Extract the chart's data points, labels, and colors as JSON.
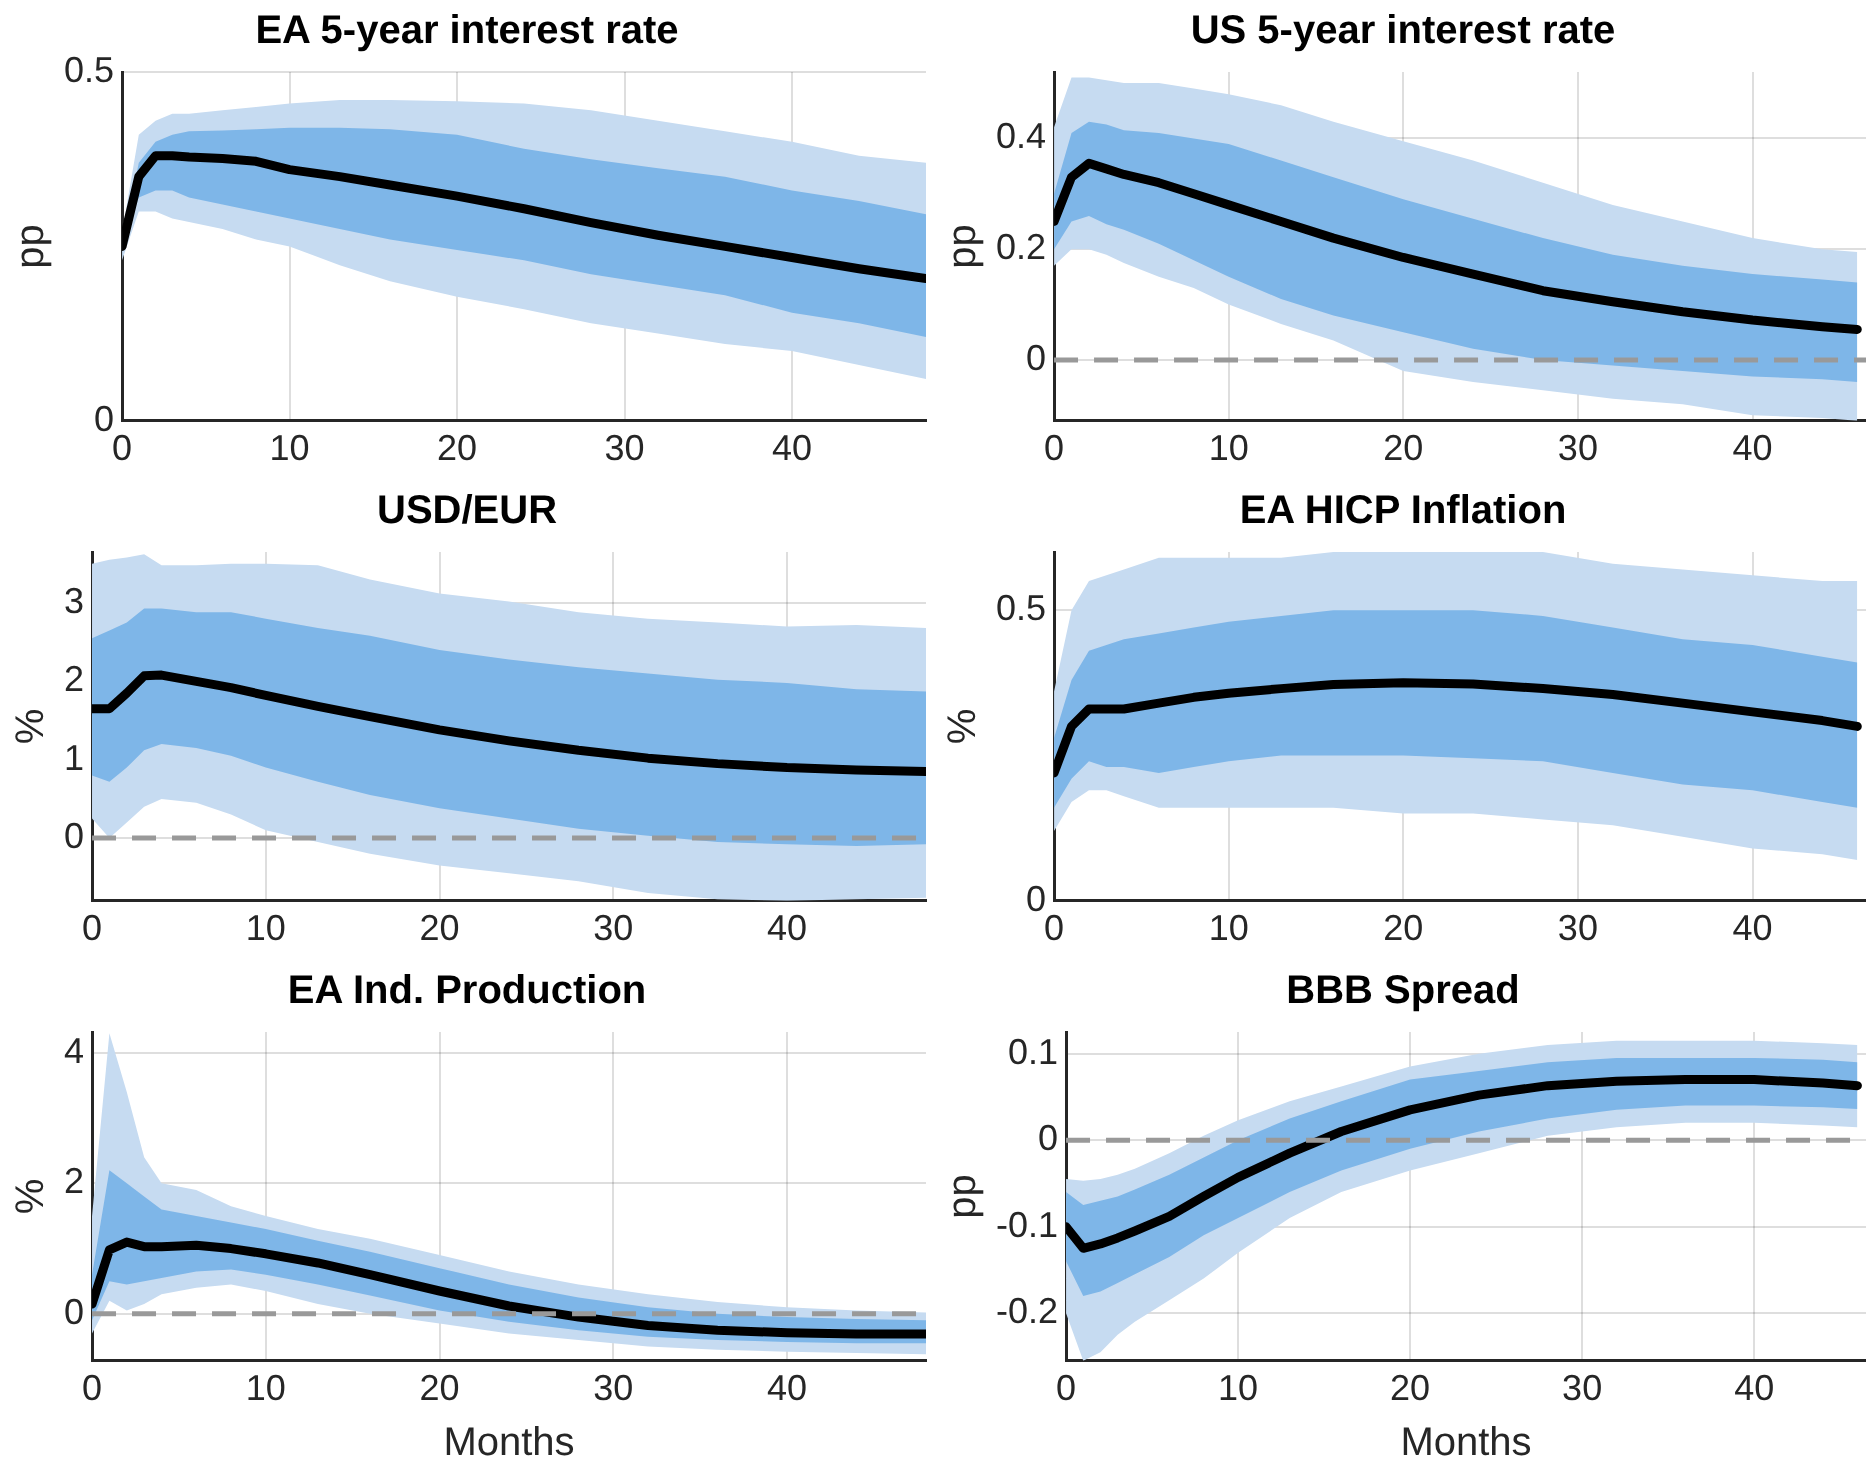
{
  "chart_data": [
    {
      "type": "line",
      "title": "EA 5-year interest rate",
      "ylabel": "pp",
      "x": [
        0,
        1,
        2,
        3,
        4,
        6,
        8,
        10,
        13,
        16,
        20,
        24,
        28,
        32,
        36,
        40,
        44,
        48
      ],
      "xlim": [
        0,
        48
      ],
      "xticks": [
        0,
        10,
        20,
        30,
        40
      ],
      "ylim": [
        0,
        0.5
      ],
      "yticks": [
        0,
        0.5
      ],
      "grid": true,
      "legend": false,
      "marker": "none",
      "line_style": "solid",
      "series": [
        {
          "color": "#c6dbf1",
          "values": [
            null,
            null,
            null,
            null,
            null,
            null,
            null,
            null,
            null,
            null,
            null,
            null,
            null,
            null,
            null,
            null,
            null,
            null
          ],
          "lower": [
            0.23,
            0.3,
            0.3,
            0.29,
            0.285,
            0.275,
            0.26,
            0.25,
            0.223,
            0.2,
            0.178,
            0.16,
            0.14,
            0.125,
            0.11,
            0.1,
            0.08,
            0.06
          ],
          "upper": [
            0.27,
            0.41,
            0.43,
            0.44,
            0.44,
            0.445,
            0.45,
            0.455,
            0.46,
            0.46,
            0.458,
            0.455,
            0.445,
            0.43,
            0.415,
            0.4,
            0.38,
            0.37
          ]
        },
        {
          "color": "#7eb6e8",
          "values": [
            null,
            null,
            null,
            null,
            null,
            null,
            null,
            null,
            null,
            null,
            null,
            null,
            null,
            null,
            null,
            null,
            null,
            null
          ],
          "lower": [
            0.25,
            0.32,
            0.33,
            0.33,
            0.32,
            0.31,
            0.3,
            0.29,
            0.275,
            0.26,
            0.245,
            0.23,
            0.21,
            0.195,
            0.18,
            0.155,
            0.14,
            0.12
          ],
          "upper": [
            0.25,
            0.37,
            0.4,
            0.41,
            0.415,
            0.416,
            0.418,
            0.42,
            0.42,
            0.418,
            0.41,
            0.39,
            0.375,
            0.362,
            0.35,
            0.33,
            0.315,
            0.296
          ]
        },
        {
          "color": "#000000",
          "values": [
            0.25,
            0.35,
            0.38,
            0.38,
            0.378,
            0.376,
            0.372,
            0.36,
            0.35,
            0.338,
            0.322,
            0.304,
            0.284,
            0.266,
            0.25,
            0.234,
            0.218,
            0.204
          ]
        }
      ]
    },
    {
      "type": "line",
      "title": "US 5-year interest rate",
      "ylabel": "pp",
      "x": [
        0,
        1,
        2,
        3,
        4,
        6,
        8,
        10,
        13,
        16,
        20,
        24,
        28,
        32,
        36,
        40,
        44,
        46
      ],
      "xlim": [
        0,
        46.5
      ],
      "xticks": [
        0,
        10,
        20,
        30,
        40
      ],
      "ylim": [
        -0.11,
        0.52
      ],
      "yticks": [
        0,
        0.2,
        0.4
      ],
      "grid": true,
      "legend": false,
      "marker": "none",
      "line_style": "solid",
      "ref_lines": [
        {
          "axis": "y",
          "value": 0,
          "color": "#999999",
          "line_style": "dashed"
        }
      ],
      "series": [
        {
          "color": "#c6dbf1",
          "values": [
            null,
            null,
            null,
            null,
            null,
            null,
            null,
            null,
            null,
            null,
            null,
            null,
            null,
            null,
            null,
            null,
            null,
            null
          ],
          "lower": [
            0.17,
            0.2,
            0.2,
            0.19,
            0.175,
            0.15,
            0.13,
            0.1,
            0.065,
            0.035,
            -0.02,
            -0.04,
            -0.055,
            -0.07,
            -0.08,
            -0.1,
            -0.105,
            -0.11
          ],
          "upper": [
            0.42,
            0.51,
            0.51,
            0.505,
            0.5,
            0.5,
            0.49,
            0.48,
            0.46,
            0.43,
            0.395,
            0.36,
            0.32,
            0.28,
            0.25,
            0.22,
            0.2,
            0.195
          ]
        },
        {
          "color": "#7eb6e8",
          "values": [
            null,
            null,
            null,
            null,
            null,
            null,
            null,
            null,
            null,
            null,
            null,
            null,
            null,
            null,
            null,
            null,
            null,
            null
          ],
          "lower": [
            0.2,
            0.25,
            0.26,
            0.245,
            0.235,
            0.21,
            0.18,
            0.15,
            0.11,
            0.08,
            0.05,
            0.02,
            0,
            -0.01,
            -0.02,
            -0.03,
            -0.035,
            -0.04
          ],
          "upper": [
            0.3,
            0.41,
            0.43,
            0.425,
            0.415,
            0.41,
            0.4,
            0.39,
            0.36,
            0.33,
            0.29,
            0.255,
            0.22,
            0.19,
            0.17,
            0.155,
            0.145,
            0.14
          ]
        },
        {
          "color": "#000000",
          "values": [
            0.25,
            0.33,
            0.355,
            0.345,
            0.335,
            0.32,
            0.3,
            0.28,
            0.25,
            0.22,
            0.185,
            0.155,
            0.125,
            0.105,
            0.087,
            0.072,
            0.06,
            0.055
          ]
        }
      ]
    },
    {
      "type": "line",
      "title": "USD/EUR",
      "ylabel": "%",
      "x": [
        0,
        1,
        2,
        3,
        4,
        6,
        8,
        10,
        13,
        16,
        20,
        24,
        28,
        32,
        36,
        40,
        44,
        48
      ],
      "xlim": [
        0,
        48
      ],
      "xticks": [
        0,
        10,
        20,
        30,
        40
      ],
      "ylim": [
        -0.8,
        3.65
      ],
      "yticks": [
        0,
        1,
        2,
        3
      ],
      "grid": true,
      "legend": false,
      "marker": "none",
      "line_style": "solid",
      "ref_lines": [
        {
          "axis": "y",
          "value": 0,
          "color": "#999999",
          "line_style": "dashed"
        }
      ],
      "series": [
        {
          "color": "#c6dbf1",
          "values": [
            null,
            null,
            null,
            null,
            null,
            null,
            null,
            null,
            null,
            null,
            null,
            null,
            null,
            null,
            null,
            null,
            null,
            null
          ],
          "lower": [
            0.25,
            0,
            0.2,
            0.4,
            0.5,
            0.45,
            0.3,
            0.1,
            -0.05,
            -0.2,
            -0.35,
            -0.45,
            -0.55,
            -0.7,
            -0.78,
            -0.8,
            -0.78,
            -0.76
          ],
          "upper": [
            3.5,
            3.55,
            3.58,
            3.62,
            3.48,
            3.48,
            3.5,
            3.5,
            3.48,
            3.3,
            3.12,
            3.02,
            2.88,
            2.8,
            2.75,
            2.7,
            2.72,
            2.68
          ]
        },
        {
          "color": "#7eb6e8",
          "values": [
            null,
            null,
            null,
            null,
            null,
            null,
            null,
            null,
            null,
            null,
            null,
            null,
            null,
            null,
            null,
            null,
            null,
            null
          ],
          "lower": [
            0.8,
            0.72,
            0.9,
            1.12,
            1.2,
            1.15,
            1.05,
            0.9,
            0.72,
            0.55,
            0.38,
            0.25,
            0.12,
            0.03,
            -0.05,
            -0.08,
            -0.1,
            -0.08
          ],
          "upper": [
            2.55,
            2.65,
            2.75,
            2.93,
            2.93,
            2.88,
            2.88,
            2.8,
            2.68,
            2.58,
            2.4,
            2.28,
            2.18,
            2.1,
            2.02,
            1.98,
            1.9,
            1.87
          ]
        },
        {
          "color": "#000000",
          "values": [
            1.65,
            1.65,
            1.85,
            2.07,
            2.08,
            2,
            1.92,
            1.82,
            1.68,
            1.55,
            1.38,
            1.24,
            1.12,
            1.02,
            0.95,
            0.9,
            0.87,
            0.85
          ]
        }
      ]
    },
    {
      "type": "line",
      "title": "EA HICP Inflation",
      "ylabel": "%",
      "x": [
        0,
        1,
        2,
        3,
        4,
        6,
        8,
        10,
        13,
        16,
        20,
        24,
        28,
        32,
        36,
        40,
        44,
        46
      ],
      "xlim": [
        0,
        46.5
      ],
      "xticks": [
        0,
        10,
        20,
        30,
        40
      ],
      "ylim": [
        0,
        0.6
      ],
      "yticks": [
        0,
        0.5
      ],
      "grid": true,
      "legend": false,
      "marker": "none",
      "line_style": "solid",
      "series": [
        {
          "color": "#c6dbf1",
          "values": [
            null,
            null,
            null,
            null,
            null,
            null,
            null,
            null,
            null,
            null,
            null,
            null,
            null,
            null,
            null,
            null,
            null,
            null
          ],
          "lower": [
            0.12,
            0.17,
            0.19,
            0.19,
            0.18,
            0.16,
            0.16,
            0.16,
            0.16,
            0.16,
            0.15,
            0.15,
            0.14,
            0.13,
            0.11,
            0.09,
            0.08,
            0.07
          ],
          "upper": [
            0.36,
            0.5,
            0.55,
            0.56,
            0.57,
            0.59,
            0.59,
            0.59,
            0.59,
            0.6,
            0.6,
            0.6,
            0.6,
            0.58,
            0.57,
            0.56,
            0.55,
            0.55
          ]
        },
        {
          "color": "#7eb6e8",
          "values": [
            null,
            null,
            null,
            null,
            null,
            null,
            null,
            null,
            null,
            null,
            null,
            null,
            null,
            null,
            null,
            null,
            null,
            null
          ],
          "lower": [
            0.16,
            0.21,
            0.24,
            0.23,
            0.23,
            0.22,
            0.23,
            0.24,
            0.25,
            0.25,
            0.25,
            0.245,
            0.24,
            0.22,
            0.2,
            0.19,
            0.17,
            0.16
          ],
          "upper": [
            0.28,
            0.38,
            0.43,
            0.44,
            0.45,
            0.46,
            0.47,
            0.48,
            0.49,
            0.5,
            0.5,
            0.5,
            0.49,
            0.47,
            0.45,
            0.44,
            0.42,
            0.41
          ]
        },
        {
          "color": "#000000",
          "values": [
            0.22,
            0.3,
            0.33,
            0.33,
            0.33,
            0.34,
            0.35,
            0.357,
            0.365,
            0.372,
            0.375,
            0.373,
            0.365,
            0.355,
            0.34,
            0.325,
            0.31,
            0.3
          ]
        }
      ]
    },
    {
      "type": "line",
      "title": "EA Ind. Production",
      "xlabel": "Months",
      "ylabel": "%",
      "x": [
        0,
        1,
        2,
        3,
        4,
        6,
        8,
        10,
        13,
        16,
        20,
        24,
        28,
        32,
        36,
        40,
        44,
        48
      ],
      "xlim": [
        0,
        48
      ],
      "xticks": [
        0,
        10,
        20,
        30,
        40
      ],
      "ylim": [
        -0.72,
        4.32
      ],
      "yticks": [
        0,
        2,
        4
      ],
      "grid": true,
      "legend": false,
      "marker": "none",
      "line_style": "solid",
      "ref_lines": [
        {
          "axis": "y",
          "value": 0,
          "color": "#999999",
          "line_style": "dashed"
        }
      ],
      "series": [
        {
          "color": "#c6dbf1",
          "values": [
            null,
            null,
            null,
            null,
            null,
            null,
            null,
            null,
            null,
            null,
            null,
            null,
            null,
            null,
            null,
            null,
            null,
            null
          ],
          "lower": [
            -0.3,
            0.2,
            0.05,
            0.15,
            0.3,
            0.4,
            0.45,
            0.35,
            0.15,
            0,
            -0.15,
            -0.3,
            -0.4,
            -0.5,
            -0.55,
            -0.58,
            -0.6,
            -0.62
          ],
          "upper": [
            1.5,
            4.3,
            3.4,
            2.4,
            2,
            1.9,
            1.65,
            1.5,
            1.3,
            1.15,
            0.9,
            0.65,
            0.45,
            0.3,
            0.18,
            0.1,
            0.05,
            0.02
          ]
        },
        {
          "color": "#7eb6e8",
          "values": [
            null,
            null,
            null,
            null,
            null,
            null,
            null,
            null,
            null,
            null,
            null,
            null,
            null,
            null,
            null,
            null,
            null,
            null
          ],
          "lower": [
            -0.1,
            0.5,
            0.45,
            0.5,
            0.55,
            0.65,
            0.68,
            0.6,
            0.45,
            0.28,
            0.05,
            -0.12,
            -0.25,
            -0.35,
            -0.4,
            -0.43,
            -0.45,
            -0.45
          ],
          "upper": [
            0.6,
            2.2,
            2,
            1.8,
            1.6,
            1.5,
            1.4,
            1.3,
            1.12,
            0.95,
            0.7,
            0.45,
            0.25,
            0.1,
            0,
            -0.05,
            -0.08,
            -0.1
          ]
        },
        {
          "color": "#000000",
          "values": [
            0.15,
            0.98,
            1.1,
            1.03,
            1.03,
            1.05,
            1,
            0.92,
            0.78,
            0.6,
            0.35,
            0.12,
            -0.05,
            -0.18,
            -0.25,
            -0.29,
            -0.31,
            -0.31
          ]
        }
      ]
    },
    {
      "type": "line",
      "title": "BBB Spread",
      "xlabel": "Months",
      "ylabel": "pp",
      "x": [
        0,
        1,
        2,
        3,
        4,
        6,
        8,
        10,
        13,
        16,
        20,
        24,
        28,
        32,
        36,
        40,
        44,
        46
      ],
      "xlim": [
        0,
        46.5
      ],
      "xticks": [
        0,
        10,
        20,
        30,
        40
      ],
      "ylim": [
        -0.255,
        0.125
      ],
      "yticks": [
        -0.2,
        -0.1,
        0,
        0.1
      ],
      "grid": true,
      "legend": false,
      "marker": "none",
      "line_style": "solid",
      "ref_lines": [
        {
          "axis": "y",
          "value": 0,
          "color": "#999999",
          "line_style": "dashed"
        }
      ],
      "series": [
        {
          "color": "#c6dbf1",
          "values": [
            null,
            null,
            null,
            null,
            null,
            null,
            null,
            null,
            null,
            null,
            null,
            null,
            null,
            null,
            null,
            null,
            null,
            null
          ],
          "lower": [
            -0.2,
            -0.255,
            -0.245,
            -0.225,
            -0.21,
            -0.185,
            -0.16,
            -0.13,
            -0.09,
            -0.06,
            -0.035,
            -0.015,
            0.005,
            0.015,
            0.02,
            0.02,
            0.017,
            0.015
          ],
          "upper": [
            -0.045,
            -0.047,
            -0.045,
            -0.04,
            -0.033,
            -0.015,
            0.005,
            0.023,
            0.045,
            0.062,
            0.085,
            0.1,
            0.11,
            0.115,
            0.115,
            0.115,
            0.112,
            0.11
          ]
        },
        {
          "color": "#7eb6e8",
          "values": [
            null,
            null,
            null,
            null,
            null,
            null,
            null,
            null,
            null,
            null,
            null,
            null,
            null,
            null,
            null,
            null,
            null,
            null
          ],
          "lower": [
            -0.14,
            -0.18,
            -0.175,
            -0.165,
            -0.155,
            -0.135,
            -0.11,
            -0.09,
            -0.06,
            -0.035,
            -0.01,
            0.01,
            0.025,
            0.035,
            0.04,
            0.04,
            0.038,
            0.036
          ],
          "upper": [
            -0.06,
            -0.075,
            -0.07,
            -0.065,
            -0.057,
            -0.04,
            -0.02,
            0,
            0.025,
            0.045,
            0.07,
            0.08,
            0.09,
            0.095,
            0.095,
            0.095,
            0.093,
            0.09
          ]
        },
        {
          "color": "#000000",
          "values": [
            -0.1,
            -0.125,
            -0.12,
            -0.113,
            -0.105,
            -0.088,
            -0.065,
            -0.043,
            -0.015,
            0.01,
            0.035,
            0.052,
            0.063,
            0.068,
            0.07,
            0.07,
            0.066,
            0.063
          ]
        }
      ]
    }
  ]
}
